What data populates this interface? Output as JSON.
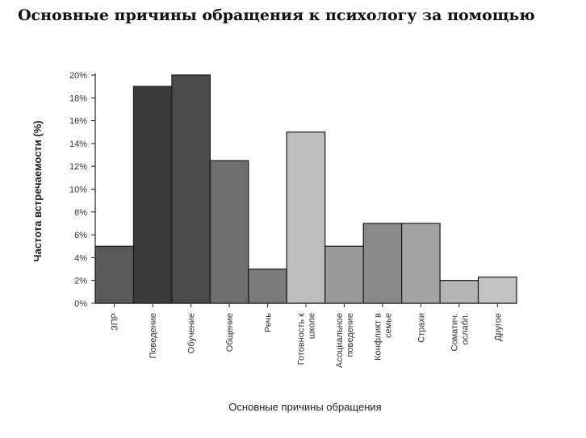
{
  "page": {
    "title": "Основные причины обращения к психологу за помощью"
  },
  "chart_data": {
    "type": "bar",
    "xlabel": "Основные причины обращения",
    "ylabel": "Частота встречаемости (%)",
    "ylim": [
      0,
      20
    ],
    "yticks": [
      0,
      2,
      4,
      6,
      8,
      10,
      12,
      14,
      16,
      18,
      20
    ],
    "ytick_labels": [
      "0%",
      "2%",
      "4%",
      "6%",
      "8%",
      "10%",
      "12%",
      "14%",
      "16%",
      "18%",
      "20%"
    ],
    "grid": false,
    "categories": [
      [
        "ЗПР"
      ],
      [
        "Поведение"
      ],
      [
        "Обучение"
      ],
      [
        "Общение"
      ],
      [
        "Речь"
      ],
      [
        "Готовность к",
        "школе"
      ],
      [
        "Асоциальное",
        "поведение"
      ],
      [
        "Конфликт в",
        "семье"
      ],
      [
        "Страхи"
      ],
      [
        "Соматич.",
        "ослабл."
      ],
      [
        "Другое"
      ]
    ],
    "values": [
      5,
      19,
      20,
      12.5,
      3,
      15,
      5,
      7,
      7,
      2,
      2.3
    ],
    "colors": [
      "#5a5a5a",
      "#3a3a3a",
      "#4a4a4a",
      "#6e6e6e",
      "#7a7a7a",
      "#bdbdbd",
      "#9a9a9a",
      "#8a8a8a",
      "#a3a3a3",
      "#b5b5b5",
      "#c2c2c2"
    ]
  }
}
